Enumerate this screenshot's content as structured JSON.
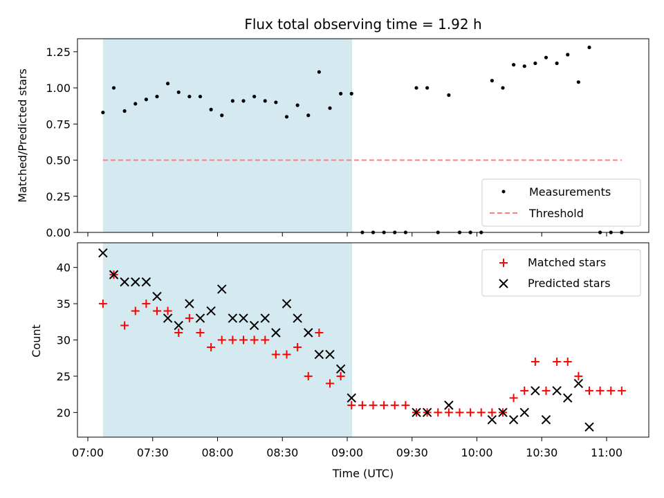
{
  "chart_data": [
    {
      "type": "scatter",
      "title": "Flux total observing time = 1.92 h",
      "xlabel": "",
      "ylabel": "Matched/Predicted stars",
      "ylim": [
        0,
        1.34
      ],
      "yticks": [
        "0.00",
        "0.25",
        "0.50",
        "0.75",
        "1.00",
        "1.25"
      ],
      "shaded_span": [
        "07:07",
        "09:02"
      ],
      "shade_color": "#d4eaf0",
      "legend": {
        "placement": "bottom-right",
        "entries": [
          "Measurements",
          "Threshold"
        ]
      },
      "series": [
        {
          "name": "Measurements",
          "marker": "dot",
          "color": "#000000",
          "x": [
            "07:07",
            "07:12",
            "07:17",
            "07:22",
            "07:27",
            "07:32",
            "07:37",
            "07:42",
            "07:47",
            "07:52",
            "07:57",
            "08:02",
            "08:07",
            "08:12",
            "08:17",
            "08:22",
            "08:27",
            "08:32",
            "08:37",
            "08:42",
            "08:47",
            "08:52",
            "08:57",
            "09:02",
            "09:07",
            "09:12",
            "09:17",
            "09:22",
            "09:27",
            "09:32",
            "09:37",
            "09:42",
            "09:47",
            "09:52",
            "09:57",
            "10:02",
            "10:07",
            "10:12",
            "10:17",
            "10:22",
            "10:27",
            "10:32",
            "10:37",
            "10:42",
            "10:47",
            "10:52",
            "10:57",
            "11:02",
            "11:07"
          ],
          "y": [
            0.83,
            1.0,
            0.84,
            0.89,
            0.92,
            0.94,
            1.03,
            0.97,
            0.94,
            0.94,
            0.85,
            0.81,
            0.91,
            0.91,
            0.94,
            0.91,
            0.9,
            0.8,
            0.88,
            0.81,
            1.11,
            0.86,
            0.96,
            0.96,
            0,
            0,
            0,
            0,
            0,
            1.0,
            1.0,
            0,
            0.95,
            0,
            0,
            0,
            1.05,
            1.0,
            1.16,
            1.15,
            1.17,
            1.21,
            1.17,
            1.23,
            1.04,
            1.28,
            0,
            0,
            0
          ]
        },
        {
          "name": "Threshold",
          "marker": "dashed-line",
          "color": "#ff7f7f",
          "x": [
            "07:07",
            "11:07"
          ],
          "y": [
            0.5,
            0.5
          ]
        }
      ]
    },
    {
      "type": "scatter",
      "title": "",
      "xlabel": "Time (UTC)",
      "ylabel": "Count",
      "ylim": [
        16.6,
        43.4
      ],
      "yticks": [
        "20",
        "25",
        "30",
        "35",
        "40"
      ],
      "xticks": [
        "07:00",
        "07:30",
        "08:00",
        "08:30",
        "09:00",
        "09:30",
        "10:00",
        "10:30",
        "11:00"
      ],
      "shaded_span": [
        "07:07",
        "09:02"
      ],
      "shade_color": "#d4eaf0",
      "legend": {
        "placement": "top-right",
        "entries": [
          "Matched stars",
          "Predicted stars"
        ]
      },
      "series": [
        {
          "name": "Matched stars",
          "marker": "plus",
          "color": "#ff0000",
          "x": [
            "07:07",
            "07:12",
            "07:17",
            "07:22",
            "07:27",
            "07:32",
            "07:37",
            "07:42",
            "07:47",
            "07:52",
            "07:57",
            "08:02",
            "08:07",
            "08:12",
            "08:17",
            "08:22",
            "08:27",
            "08:32",
            "08:37",
            "08:42",
            "08:47",
            "08:52",
            "08:57",
            "09:02",
            "09:07",
            "09:12",
            "09:17",
            "09:22",
            "09:27",
            "09:32",
            "09:37",
            "09:42",
            "09:47",
            "09:52",
            "09:57",
            "10:02",
            "10:07",
            "10:12",
            "10:17",
            "10:22",
            "10:27",
            "10:32",
            "10:37",
            "10:42",
            "10:47",
            "10:52",
            "10:57",
            "11:02",
            "11:07"
          ],
          "y": [
            35,
            39,
            32,
            34,
            35,
            34,
            34,
            31,
            33,
            31,
            29,
            30,
            30,
            30,
            30,
            30,
            28,
            28,
            29,
            25,
            31,
            24,
            25,
            21,
            21,
            21,
            21,
            21,
            21,
            20,
            20,
            20,
            20,
            20,
            20,
            20,
            20,
            20,
            22,
            23,
            27,
            23,
            27,
            27,
            25,
            23,
            23,
            23,
            23
          ]
        },
        {
          "name": "Predicted stars",
          "marker": "x",
          "color": "#000000",
          "x": [
            "07:07",
            "07:12",
            "07:17",
            "07:22",
            "07:27",
            "07:32",
            "07:37",
            "07:42",
            "07:47",
            "07:52",
            "07:57",
            "08:02",
            "08:07",
            "08:12",
            "08:17",
            "08:22",
            "08:27",
            "08:32",
            "08:37",
            "08:42",
            "08:47",
            "08:52",
            "08:57",
            "09:02",
            "09:32",
            "09:37",
            "09:47",
            "10:07",
            "10:12",
            "10:17",
            "10:22",
            "10:27",
            "10:32",
            "10:37",
            "10:42",
            "10:47",
            "10:52"
          ],
          "y": [
            42,
            39,
            38,
            38,
            38,
            36,
            33,
            32,
            35,
            33,
            34,
            37,
            33,
            33,
            32,
            33,
            31,
            35,
            33,
            31,
            28,
            28,
            26,
            22,
            20,
            20,
            21,
            19,
            20,
            19,
            20,
            23,
            19,
            23,
            22,
            24,
            18
          ]
        }
      ]
    }
  ]
}
